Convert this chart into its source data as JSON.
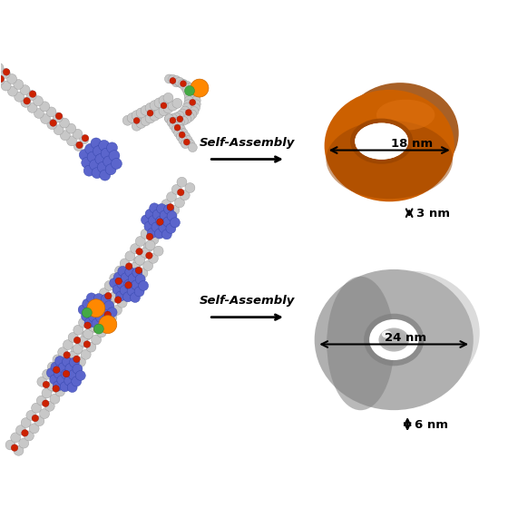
{
  "background_color": "#ffffff",
  "arrow_text_1": "Self-Assembly",
  "arrow_text_2": "Self-Assembly",
  "orange_color": "#CC6000",
  "orange_light": "#DD7010",
  "orange_dark": "#994400",
  "gray_color": "#B0B0B0",
  "gray_light": "#D0D0D0",
  "gray_dark": "#808080",
  "label_1_h": "18 nm",
  "label_1_v": "3 nm",
  "label_2_h": "24 nm",
  "label_2_v": "6 nm",
  "mol_gray": "#C8C8C8",
  "mol_blue": "#5B65CC",
  "mol_red": "#CC2200",
  "mol_orange": "#FF8800",
  "mol_green": "#44AA44",
  "figsize": [
    5.6,
    5.6
  ],
  "dpi": 100
}
